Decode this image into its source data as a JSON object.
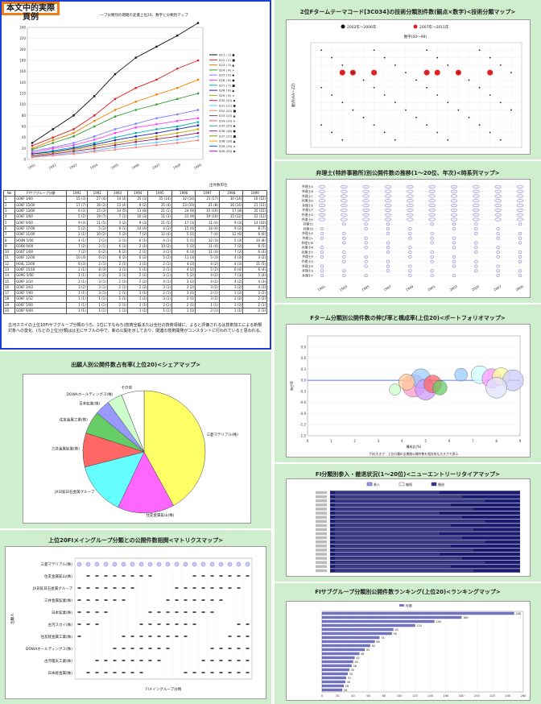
{
  "badge": "本文中的実際頁例",
  "p1": {
    "chart_title": "一プ分類別の期間の変遷上位20、数字と分類別マップ",
    "unit": "出件数単位",
    "chart_data": {
      "type": "line",
      "x": [
        "1991",
        "1992",
        "1993",
        "1994",
        "1995",
        "1996",
        "1997",
        "1998",
        "1999"
      ],
      "ylim": [
        0,
        240
      ],
      "yticks": [
        0,
        20,
        40,
        60,
        80,
        100,
        120,
        140,
        160,
        180,
        200,
        220,
        240
      ],
      "series": [
        {
          "color": "#111111",
          "values": [
            30,
            55,
            80,
            115,
            155,
            185,
            205,
            225,
            248
          ]
        },
        {
          "color": "#e02020",
          "values": [
            25,
            40,
            55,
            80,
            110,
            130,
            145,
            165,
            180
          ]
        },
        {
          "color": "#f08000",
          "values": [
            20,
            35,
            48,
            70,
            90,
            105,
            118,
            130,
            145
          ]
        },
        {
          "color": "#30a030",
          "values": [
            18,
            30,
            42,
            60,
            78,
            90,
            100,
            110,
            120
          ]
        },
        {
          "color": "#8080ff",
          "values": [
            15,
            22,
            30,
            42,
            55,
            65,
            75,
            82,
            90
          ]
        },
        {
          "color": "#ff40ff",
          "values": [
            12,
            20,
            26,
            36,
            48,
            58,
            64,
            70,
            75
          ]
        },
        {
          "color": "#00b0b0",
          "values": [
            10,
            16,
            22,
            30,
            40,
            48,
            55,
            60,
            68
          ]
        },
        {
          "color": "#2020c0",
          "values": [
            10,
            14,
            20,
            27,
            35,
            42,
            48,
            55,
            62
          ]
        },
        {
          "color": "#c0a000",
          "values": [
            8,
            12,
            18,
            24,
            30,
            36,
            42,
            48,
            55
          ]
        },
        {
          "color": "#a02060",
          "values": [
            6,
            10,
            15,
            20,
            26,
            32,
            37,
            42,
            48
          ]
        },
        {
          "color": "#60c0ff",
          "values": [
            5,
            8,
            12,
            16,
            22,
            27,
            31,
            36,
            42
          ]
        },
        {
          "color": "#ff8080",
          "values": [
            4,
            7,
            10,
            14,
            18,
            22,
            26,
            30,
            35
          ]
        }
      ]
    },
    "legend": [
      "S21 ( 1) ●",
      "S22 ( 2) ■",
      "S23 ( 3) ▲",
      "S24 ( 4) ×",
      "S25 ( 5) ◆",
      "S26 ( 6) ●",
      "S27 ( 7) ■",
      "S28 ( 8) ▲",
      "S29 ( 9) ×",
      "S30 (10) ◆",
      "S31 (11) ●",
      "S32 (12) ■",
      "S33 (13) ▲",
      "S34 (14) ×",
      "S35 (15) ◆",
      "S36 (16) ●",
      "S37 (17) ■",
      "S38 (18) ▲",
      "S39 (19) ×",
      "S40 (20) ◆"
    ],
    "table_head": [
      "No",
      "FIサブグループ分類",
      "1991",
      "1992",
      "1993",
      "1994",
      "1995",
      "1996",
      "1997",
      "1998",
      "1999"
    ],
    "table_rows": [
      [
        "1",
        "G06F 3/00",
        "15 (3)",
        "27 (4)",
        "14 (4)",
        "25 (3)",
        "35 (14)",
        "32 (14)",
        "21 (17)",
        "30 (14)",
        "16 (12)"
      ],
      [
        "2",
        "G06F 15/00",
        "17 (7)",
        "16 (2)",
        "13 (4)",
        "9 (2)",
        "35 (4)",
        "23 (10)",
        "21 (8)",
        "16 (14)",
        "21 (12)"
      ],
      [
        "3",
        "G06F 13/00",
        "6 (3)",
        "15 (3)",
        "14 (5)",
        "13 (8)",
        "21 (1)",
        "24 (9)",
        "15 (10)",
        "17 (8)",
        "35 (15)"
      ],
      [
        "4",
        "G06F 1/00",
        "5 (2)",
        "19 (7)",
        "7 (1)",
        "10 (3)",
        "11 (3)",
        "21 (9)",
        "19 (10)",
        "15 (12)",
        "22 (12)"
      ],
      [
        "5",
        "G06F 9/00",
        "9 (3)",
        "11 (5)",
        "3 (2)",
        "9 (3)",
        "21 (5)",
        "17 (3)",
        "11 (4)",
        "9 (3)",
        "14 (10)"
      ],
      [
        "6",
        "G06F 17/00",
        "5 (2)",
        "5 (2)",
        "6 (1)",
        "14 (4)",
        "4 (2)",
        "15 (4)",
        "14 (4)",
        "9 (2)",
        "8 (7)"
      ],
      [
        "7",
        "G06F 11/00",
        "2 (1)",
        "10 (2)",
        "5 (2)",
        "7 (2)",
        "12 (4)",
        "5 (2)",
        "7 (4)",
        "12 (6)",
        "6 (6)"
      ],
      [
        "8",
        "H04N 5/00",
        "4 (1)",
        "2 (1)",
        "2 (1)",
        "6 (1)",
        "4 (1)",
        "5 (1)",
        "12 (3)",
        "5 (3)",
        "10 (8)"
      ],
      [
        "9",
        "G06K 9/00",
        "7 (2)",
        "2 (1)",
        "6 (1)",
        "2 (1)",
        "10 (2)",
        "5 (2)",
        "11 (4)",
        "7 (2)",
        "6 (5)"
      ],
      [
        "10",
        "G06T 1/00",
        "7 (2)",
        "6 (2)",
        "6 (2)",
        "2 (1)",
        "3 (1)",
        "6 (3)",
        "11 (4)",
        "7 (2)",
        "6 (4)"
      ],
      [
        "11",
        "G06F 12/00",
        "10 (4)",
        "6 (2)",
        "6 (2)",
        "6 (2)",
        "5 (2)",
        "11 (3)",
        "5 (3)",
        "4 (3)",
        "3 (2)"
      ],
      [
        "12",
        "H04L 12/00",
        "8 (3)",
        "2 (1)",
        "2 (1)",
        "3 (1)",
        "2 (1)",
        "4 (2)",
        "4 (2)",
        "4 (3)",
        "11 (5)"
      ],
      [
        "13",
        "G06F 15/16",
        "2 (1)",
        "8 (3)",
        "3 (1)",
        "5 (1)",
        "2 (1)",
        "4 (2)",
        "5 (2)",
        "6 (4)",
        "6 (4)"
      ],
      [
        "14",
        "G09G 5/00",
        "1 (1)",
        "4 (2)",
        "3 (1)",
        "2 (1)",
        "3 (1)",
        "5 (2)",
        "4 (2)",
        "7 (3)",
        "5 (4)"
      ],
      [
        "15",
        "G06F 3/14",
        "2 (1)",
        "3 (1)",
        "1 (1)",
        "2 (2)",
        "4 (1)",
        "3 (2)",
        "4 (2)",
        "4 (2)",
        "4 (3)"
      ],
      [
        "16",
        "G06F 3/03",
        "3 (2)",
        "3 (1)",
        "2 (1)",
        "2 (2)",
        "3 (1)",
        "3 (2)",
        "3 (2)",
        "3 (2)",
        "4 (3)"
      ],
      [
        "17",
        "G06F 7/00",
        "1 (1)",
        "3 (1)",
        "1 (1)",
        "3 (1)",
        "2 (1)",
        "3 (1)",
        "2 (1)",
        "3 (2)",
        "3 (2)"
      ],
      [
        "18",
        "G06F 3/12",
        "1 (1)",
        "1 (1)",
        "1 (1)",
        "1 (1)",
        "3 (1)",
        "2 (1)",
        "3 (2)",
        "2 (2)",
        "2 (2)"
      ],
      [
        "19",
        "G06F 5/00",
        "1 (1)",
        "1 (1)",
        "2 (1)",
        "1 (1)",
        "2 (1)",
        "2 (1)",
        "1 (1)",
        "3 (2)",
        "2 (1)"
      ],
      [
        "20",
        "G06F 9/44",
        "1 (1)",
        "1 (1)",
        "1 (1)",
        "1 (1)",
        "1 (1)",
        "1 (1)",
        "2 (1)",
        "1 (1)",
        "2 (1)"
      ]
    ],
    "note": "古河スカイの上位10FIサブグループ分類のうち、1位にすなわち(技術全般または全社の技術領域に、よると評価されるは技術加工による新規対象への変化、(などの上位)分類はは主にサブルの中で、新の公開を示しており、関連の技術開発がコンスタントに行われていると思われる。"
  },
  "p2": {
    "title": "出願人別公開件数占有率(上位20)<シェアマップ>",
    "chart_data": {
      "type": "pie",
      "labels": [
        "三菱マテリアル(株)",
        "住友金属鉱山(株)",
        "JX日鉱日石金属グループ",
        "三井金属鉱業(株)",
        "住友金属工業(株)",
        "日本鉱業(株)",
        "DOWAホールディングス(株)",
        "その他"
      ],
      "values": [
        42,
        15,
        14,
        9,
        6,
        4,
        4,
        6
      ],
      "colors": [
        "#ffff66",
        "#ff66ff",
        "#66ffff",
        "#ff6666",
        "#66cc66",
        "#9999ff",
        "#ccffcc",
        "#ffffff"
      ]
    }
  },
  "p3": {
    "title": "上位20FIメイングループ分類との公開件数相関<マトリクスマップ>",
    "ylabel": "出願人",
    "xlabel": "FIメイングループ分類",
    "rows": [
      "三菱マテリアル(株)",
      "住友金属鉱山(株)",
      "JX日鉱日石金属グループ",
      "三井金属鉱業(株)",
      "日本鉱業(株)",
      "古河スカイ(株)",
      "住友軽金属工業(株)",
      "DOWAホールディングス(株)",
      "古河電気工業(株)",
      "日本軽金属(株)"
    ]
  },
  "p4": {
    "title": "2位Fタームテーマコード[3C034]の技術分類別件数(観点×数字)<技術分類マップ>",
    "legend": [
      "2002年～2006年",
      "2007年～2011年"
    ],
    "subtitle": "数字(00～99)",
    "ylabel": "観点(AA～ZZ)"
  },
  "p5": {
    "title": "弁理士(特許事務所)別公開件数の推移(1～20位、年次)<時系列マップ>",
    "rows": [
      "弁理士A",
      "弁理士B",
      "弁理士C",
      "弁理士D",
      "弁理士E",
      "弁理士F",
      "弁理士G",
      "弁理士H",
      "弁理士I",
      "弁理士J",
      "弁理士K",
      "弁理士L",
      "弁理士M",
      "弁理士N",
      "弁理士O",
      "弁理士P",
      "弁理士Q",
      "弁理士R",
      "弁理士S",
      "弁理士T"
    ],
    "years": [
      "1991",
      "1993",
      "1995",
      "1997",
      "1999",
      "2001",
      "2003",
      "2005",
      "2007",
      "2009"
    ]
  },
  "p6": {
    "title": "Fターム分類別公開件数の伸び率と構成率(上位20)<ポートフォリオマップ>",
    "xlabel": "構成比(%)",
    "ylabel": "伸び率",
    "note": "円の大きさ：上位分類の全期間公開件数を相対的な大きさで表示",
    "chart_data": {
      "type": "scatter",
      "xlim": [
        0,
        9
      ],
      "ylim": [
        -1.5,
        1.2
      ],
      "points": [
        {
          "x": 4.5,
          "y": -0.15,
          "r": 14,
          "color": "#ff99cc"
        },
        {
          "x": 4.8,
          "y": 0.05,
          "r": 12,
          "color": "#99ccff"
        },
        {
          "x": 5.0,
          "y": -0.25,
          "r": 13,
          "color": "#cc99ff"
        },
        {
          "x": 5.3,
          "y": -0.1,
          "r": 11,
          "color": "#ff6666"
        },
        {
          "x": 4.2,
          "y": -0.05,
          "r": 10,
          "color": "#ffcc99"
        },
        {
          "x": 3.7,
          "y": -0.25,
          "r": 7,
          "color": "#ccffcc"
        },
        {
          "x": 5.6,
          "y": -0.2,
          "r": 9,
          "color": "#66cc66"
        },
        {
          "x": 6.5,
          "y": 0.15,
          "r": 8,
          "color": "#99ccff"
        },
        {
          "x": 7.3,
          "y": 0.15,
          "r": 11,
          "color": "#ccffff"
        },
        {
          "x": 7.8,
          "y": 0.05,
          "r": 12,
          "color": "#ff99ff"
        },
        {
          "x": 8.2,
          "y": 0.1,
          "r": 11,
          "color": "#ffff99"
        },
        {
          "x": 8.7,
          "y": 0.0,
          "r": 13,
          "color": "#ccccff"
        },
        {
          "x": 8.0,
          "y": -0.2,
          "r": 13,
          "color": "#e0e0ff"
        }
      ]
    }
  },
  "p7": {
    "title": "FI分類別参入・撤退状況(1～20位)<ニューエントリーリタイアマップ>",
    "legend": [
      "参入",
      "継続",
      "撤退"
    ],
    "legend_colors": [
      "#9999ff",
      "#ffffff",
      "#333399"
    ]
  },
  "p8": {
    "title": "FIサブグループ分類別公開件数ランキング(上位20)<ランキングマップ>",
    "legend": [
      "件数"
    ],
    "chart_data": {
      "type": "bar",
      "values": [
        248,
        180,
        145,
        120,
        92,
        90,
        74,
        68,
        62,
        55,
        48,
        42,
        40,
        38,
        35,
        33,
        31,
        30,
        28,
        26
      ],
      "xlim": [
        0,
        260
      ]
    }
  }
}
